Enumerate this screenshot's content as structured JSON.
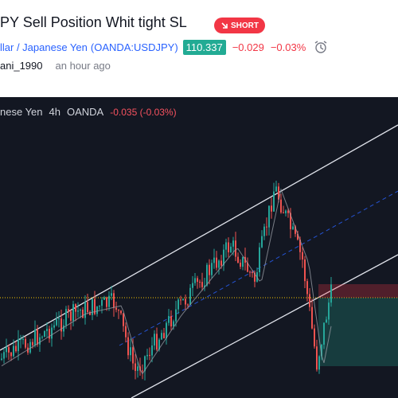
{
  "header": {
    "title": "PY Sell Position Whit tight SL",
    "badge": "SHORT",
    "symbol_name": "llar / Japanese Yen",
    "symbol_code": "(OANDA:USDJPY)",
    "price": "110.337",
    "change": "−0.029",
    "change_pct": "−0.03%",
    "author": "ani_1990",
    "time": "an hour ago"
  },
  "chart": {
    "symbol": "nese Yen",
    "interval": "4h",
    "exchange": "OANDA",
    "change": "-0.035 (-0.03%)"
  }
}
